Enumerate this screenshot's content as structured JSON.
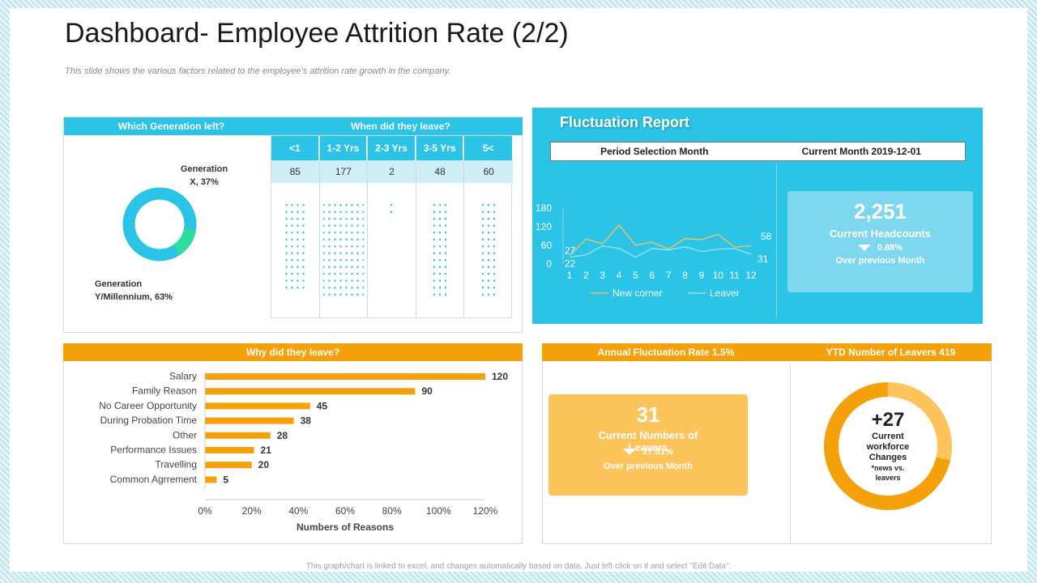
{
  "title": "Dashboard- Employee Attrition Rate (2/2)",
  "subtitle": "This slide shows the various factors related to the employee's attrition rate growth in the company.",
  "footer": "This graph/chart is linked to excel, and changes automatically based on data. Just left click on it and select \"Edit Data\".",
  "generation": {
    "header_left": "Which Generation left?",
    "header_right": "When did they leave?",
    "label_x": "Generation X, 37%",
    "label_x_line1": "Generation",
    "label_x_line2": "X, 37%",
    "label_y_line1": "Generation",
    "label_y_line2": "Y/Millennium, 63%",
    "colors": {
      "x": "#2edc9c",
      "y": "#2bc3e6"
    },
    "chart_data": {
      "type": "pie",
      "categories": [
        "Generation X",
        "Generation Y/Millennium"
      ],
      "values": [
        37,
        63
      ]
    }
  },
  "tenure": {
    "columns": [
      {
        "label": "<1",
        "value": "85"
      },
      {
        "label": "1-2 Yrs",
        "value": "177"
      },
      {
        "label": "2-3 Yrs",
        "value": "2"
      },
      {
        "label": "3-5 Yrs",
        "value": "48"
      },
      {
        "label": "5<",
        "value": "60"
      }
    ]
  },
  "reasons": {
    "header": "Why did they leave?",
    "xlabel": "Numbers of Reasons",
    "bar_color": "#f5a10c",
    "chart_data": {
      "type": "bar",
      "orientation": "horizontal",
      "categories": [
        "Salary",
        "Family Reason",
        "No Career Opportunity",
        "During Probation Time",
        "Other",
        "Performance Issues",
        "Travelling",
        "Common Agrrement"
      ],
      "values": [
        120,
        90,
        45,
        38,
        28,
        21,
        20,
        5
      ],
      "xticks": [
        "0%",
        "20%",
        "40%",
        "60%",
        "80%",
        "100%",
        "120%"
      ],
      "xlim": [
        0,
        120
      ],
      "xlabel": "Numbers of Reasons"
    }
  },
  "fluctuation": {
    "title": "Fluctuation Report",
    "period_label": "Period Selection Month",
    "current_month": "Current Month 2019-12-01",
    "headcount_value": "2,251",
    "headcount_label": "Current Headcounts",
    "headcount_change": "0.88%",
    "headcount_note": "Over previous Month",
    "chart_data": {
      "type": "line",
      "x": [
        1,
        2,
        3,
        4,
        5,
        6,
        7,
        8,
        9,
        10,
        11,
        12
      ],
      "xticks": [
        "1",
        "2",
        "3",
        "4",
        "5",
        "6",
        "7",
        "8",
        "9",
        "10",
        "11",
        "12"
      ],
      "yticks": [
        "0",
        "60",
        "120",
        "180"
      ],
      "ylim": [
        0,
        180
      ],
      "series": [
        {
          "name": "New corner",
          "color": "#e0c46a",
          "values": [
            27,
            80,
            65,
            125,
            60,
            70,
            48,
            82,
            78,
            95,
            55,
            58
          ]
        },
        {
          "name": "Leaver",
          "color": "#8fe0f2",
          "values": [
            22,
            30,
            58,
            50,
            22,
            50,
            45,
            55,
            40,
            48,
            50,
            31
          ]
        }
      ],
      "annotations": {
        "start_new": "27",
        "start_leaver": "22",
        "end_new": "58",
        "end_leaver": "31"
      }
    }
  },
  "annual": {
    "rate_label": "Annual Fluctuation Rate",
    "rate_value": "1.5%",
    "ytd_label": "YTD Number of Leavers",
    "ytd_value": "419",
    "leavers_value": "31",
    "leavers_label": "Current Numbers of Leavers",
    "leavers_change": "27.91%",
    "leavers_note": "Over previous Month",
    "workforce_value": "+27",
    "workforce_line1": "Current",
    "workforce_line2": "workforce",
    "workforce_line3": "Changes",
    "workforce_line4": "*news vs.",
    "workforce_line5": "leavers",
    "colors": {
      "main": "#f5a10c",
      "light": "#fcc45a"
    },
    "chart_data": {
      "type": "pie",
      "categories": [
        "Leavers",
        "Workforce change"
      ],
      "values": [
        419,
        27
      ]
    }
  }
}
